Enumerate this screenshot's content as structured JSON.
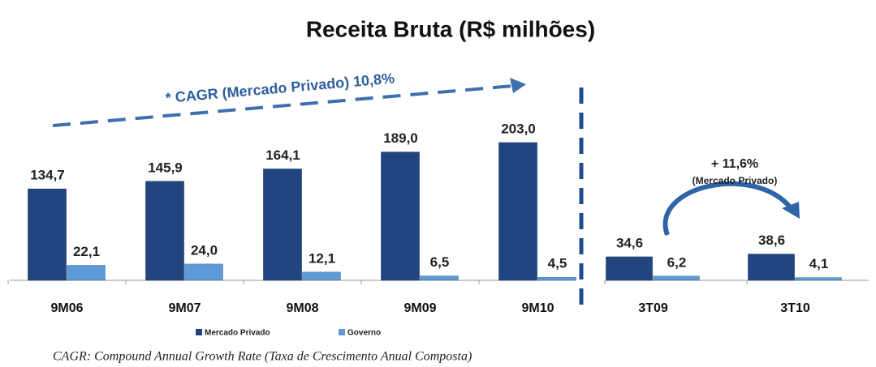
{
  "chart_data": [
    {
      "type": "bar",
      "title": "Receita Bruta (R$ milhões)",
      "annotation": "* CAGR (Mercado Privado) 10,8%",
      "footnote": "CAGR: Compound Annual Growth Rate (Taxa de Crescimento Anual Composta)",
      "categories": [
        "9M06",
        "9M07",
        "9M08",
        "9M09",
        "9M10"
      ],
      "series": [
        {
          "name": "Mercado Privado",
          "color": "#21467f",
          "values": [
            134.7,
            145.9,
            164.1,
            189.0,
            203.0
          ],
          "value_labels": [
            "134,7",
            "145,9",
            "164,1",
            "189,0",
            "203,0"
          ]
        },
        {
          "name": "Governo",
          "color": "#5d9ad6",
          "values": [
            22.1,
            24.0,
            12.1,
            6.5,
            4.5
          ],
          "value_labels": [
            "22,1",
            "24,0",
            "12,1",
            "6,5",
            "4,5"
          ]
        }
      ]
    },
    {
      "type": "bar",
      "annotation": "+ 11,6%",
      "annotation_note": "(Mercado Privado)",
      "categories": [
        "3T09",
        "3T10"
      ],
      "series": [
        {
          "color": "#21467f",
          "values": [
            34.6,
            38.6
          ],
          "value_labels": [
            "34,6",
            "38,6"
          ]
        },
        {
          "color": "#5d9ad6",
          "values": [
            6.2,
            4.1
          ],
          "value_labels": [
            "6,2",
            "4,1"
          ]
        }
      ]
    }
  ]
}
